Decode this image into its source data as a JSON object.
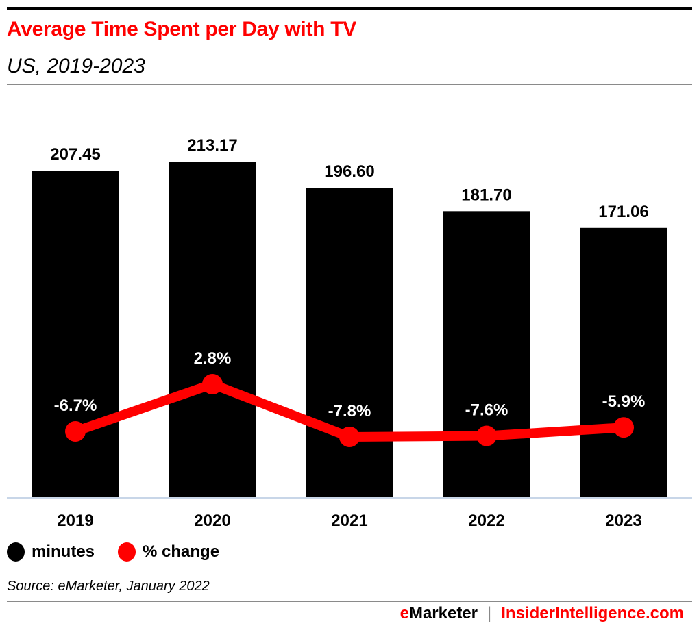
{
  "header": {
    "title": "Average Time Spent per Day with TV",
    "subtitle": "US, 2019-2023"
  },
  "legend": [
    {
      "label": "minutes",
      "color": "#000000"
    },
    {
      "label": "% change",
      "color": "#ff0000"
    }
  ],
  "footer": {
    "source": "Source: eMarketer, January 2022",
    "brand_e": "e",
    "brand_rest": "Marketer",
    "separator": "|",
    "site": "InsiderIntelligence.com"
  },
  "colors": {
    "bar": "#000000",
    "line": "#ff0000",
    "title": "#ff0000",
    "axis": "#c8d6e8"
  },
  "chart_data": {
    "type": "bar",
    "title": "Average Time Spent per Day with TV",
    "subtitle": "US, 2019-2023",
    "xlabel": "",
    "ylabel": "",
    "categories": [
      "2019",
      "2020",
      "2021",
      "2022",
      "2023"
    ],
    "series": [
      {
        "name": "minutes",
        "type": "bar",
        "values": [
          207.45,
          213.17,
          196.6,
          181.7,
          171.06
        ],
        "labels": [
          "207.45",
          "213.17",
          "196.60",
          "181.70",
          "171.06"
        ]
      },
      {
        "name": "% change",
        "type": "line",
        "values": [
          -6.7,
          2.8,
          -7.8,
          -7.6,
          -5.9
        ],
        "labels": [
          "-6.7%",
          "2.8%",
          "-7.8%",
          "-7.6%",
          "-5.9%"
        ]
      }
    ],
    "ylim": [
      0,
      213.17
    ],
    "grid": false,
    "legend_position": "bottom-left"
  }
}
